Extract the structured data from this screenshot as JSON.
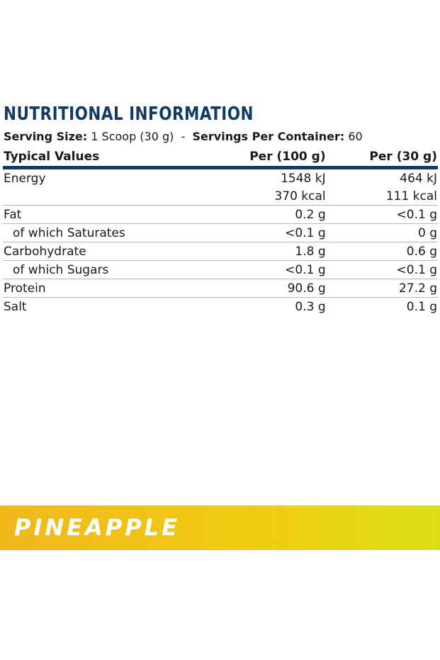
{
  "header": {
    "title": "NUTRITIONAL INFORMATION"
  },
  "serving": {
    "size_label": "Serving Size:",
    "size_value": "1 Scoop (30 g)",
    "separator": "-",
    "servings_label": "Servings Per Container:",
    "servings_value": "60"
  },
  "table": {
    "columns": [
      "Typical Values",
      "Per (100 g)",
      "Per (30 g)"
    ],
    "rows": [
      [
        "Energy",
        "1548 kJ",
        "464 kJ"
      ],
      [
        "",
        "370 kcal",
        "111 kcal"
      ],
      [
        "Fat",
        "0.2 g",
        "<0.1 g"
      ],
      [
        "of which Saturates",
        "<0.1 g",
        "0 g"
      ],
      [
        "Carbohydrate",
        "1.8 g",
        "0.6 g"
      ],
      [
        "of which Sugars",
        "<0.1 g",
        "<0.1 g"
      ],
      [
        "Protein",
        "90.6 g",
        "27.2 g"
      ],
      [
        "Salt",
        "0.3 g",
        "0.1 g"
      ]
    ]
  },
  "banner": {
    "label": "PINEAPPLE"
  }
}
